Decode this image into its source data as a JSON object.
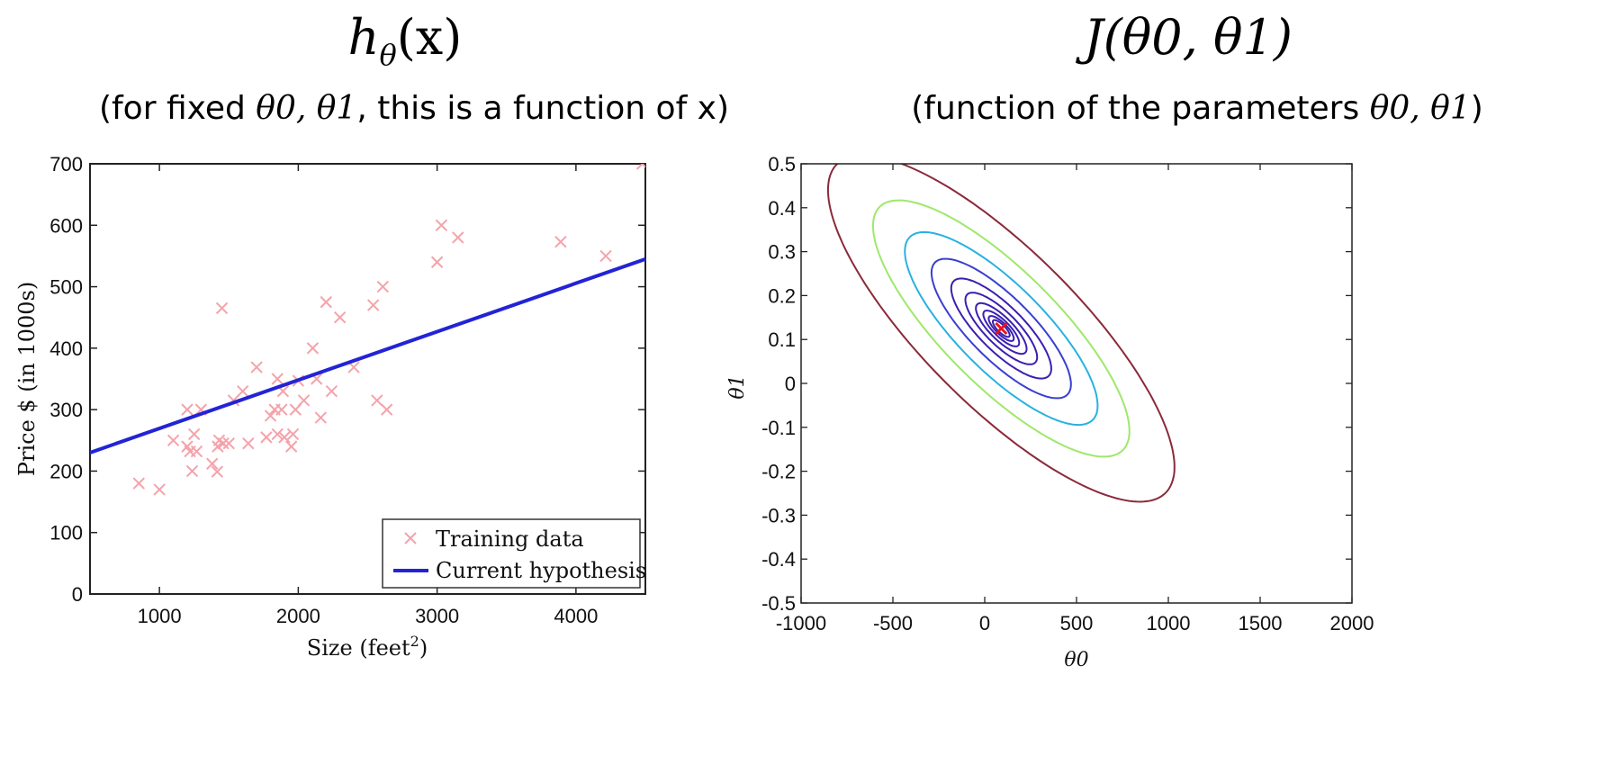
{
  "left_panel": {
    "title": "hθ(x)",
    "title_main": "h",
    "title_sub": "θ",
    "title_arg": "(x)",
    "subtitle_pre": "(for fixed ",
    "subtitle_params": "θ0, θ1",
    "subtitle_post": ", this is a function of x)"
  },
  "right_panel": {
    "title": "J(θ0, θ1)",
    "subtitle_pre": "(function of the parameters ",
    "subtitle_params": "θ0, θ1",
    "subtitle_post": ")"
  },
  "colors": {
    "training_marker": "#f4a3ab",
    "hypothesis_line": "#2323d6",
    "minimum_marker": "#e8141e",
    "contour_levels": [
      "#3b1fb0",
      "#3b1fb0",
      "#3b1fb0",
      "#3b1fb0",
      "#3b1fb0",
      "#3b1fb0",
      "#3a3fd0",
      "#27b2e0",
      "#9ee86a",
      "#8a2a3a"
    ]
  },
  "chart_data": [
    {
      "type": "scatter",
      "xlabel": "Size (feet2)",
      "xlabel_main": "Size (feet",
      "xlabel_sup": "2",
      "xlabel_close": ")",
      "ylabel": "Price $ (in 1000s)",
      "xlim": [
        500,
        4500
      ],
      "ylim": [
        0,
        700
      ],
      "xticks": [
        1000,
        2000,
        3000,
        4000
      ],
      "yticks": [
        0,
        100,
        200,
        300,
        400,
        500,
        600,
        700
      ],
      "legend": {
        "placement": "bottom-right",
        "entries": [
          "Training data",
          "Current hypothesis"
        ]
      },
      "series": [
        {
          "name": "Training data",
          "kind": "scatter",
          "x": [
            852,
            1000,
            1100,
            1200,
            1200,
            1220,
            1236,
            1250,
            1268,
            1300,
            1380,
            1416,
            1420,
            1430,
            1450,
            1460,
            1500,
            1534,
            1600,
            1640,
            1700,
            1770,
            1800,
            1830,
            1850,
            1850,
            1880,
            1890,
            1900,
            1950,
            1962,
            1980,
            2000,
            2040,
            2104,
            2132,
            2162,
            2200,
            2240,
            2300,
            2400,
            2540,
            2567,
            2609,
            2637,
            3000,
            3031,
            3150,
            3890,
            4215,
            4478
          ],
          "y": [
            180,
            170,
            250,
            300,
            240,
            232,
            200,
            260,
            232,
            300,
            212,
            199,
            240,
            250,
            465,
            245,
            245,
            315,
            330,
            245,
            369,
            255,
            290,
            300,
            350,
            260,
            300,
            330,
            255,
            240,
            260,
            300,
            347,
            315,
            400,
            350,
            287,
            475,
            330,
            450,
            369,
            470,
            315,
            500,
            300,
            540,
            600,
            580,
            573,
            550,
            700
          ]
        },
        {
          "name": "Current hypothesis",
          "kind": "line",
          "x": [
            500,
            4500
          ],
          "y": [
            230,
            545
          ]
        }
      ]
    },
    {
      "type": "contour",
      "xlabel": "θ0",
      "ylabel": "θ1",
      "xlim": [
        -1000,
        2000
      ],
      "ylim": [
        -0.5,
        0.5
      ],
      "xticks": [
        -1000,
        -500,
        0,
        500,
        1000,
        1500,
        2000
      ],
      "yticks": [
        -0.5,
        -0.4,
        -0.3,
        -0.2,
        -0.1,
        0,
        0.1,
        0.2,
        0.3,
        0.4,
        0.5
      ],
      "xtick_labels": [
        "-1000",
        "-500",
        "0",
        "500",
        "1000",
        "1500",
        "2000"
      ],
      "ytick_labels": [
        "-0.5",
        "-0.4",
        "-0.3",
        "-0.2",
        "-0.1",
        "0",
        "0.1",
        "0.2",
        "0.3",
        "0.4",
        "0.5"
      ],
      "minimum": {
        "theta0": 90,
        "theta1": 0.125
      },
      "contour_levels_relative": [
        1,
        2.2,
        4.5,
        9,
        18,
        35,
        68,
        130,
        230,
        420
      ]
    }
  ]
}
